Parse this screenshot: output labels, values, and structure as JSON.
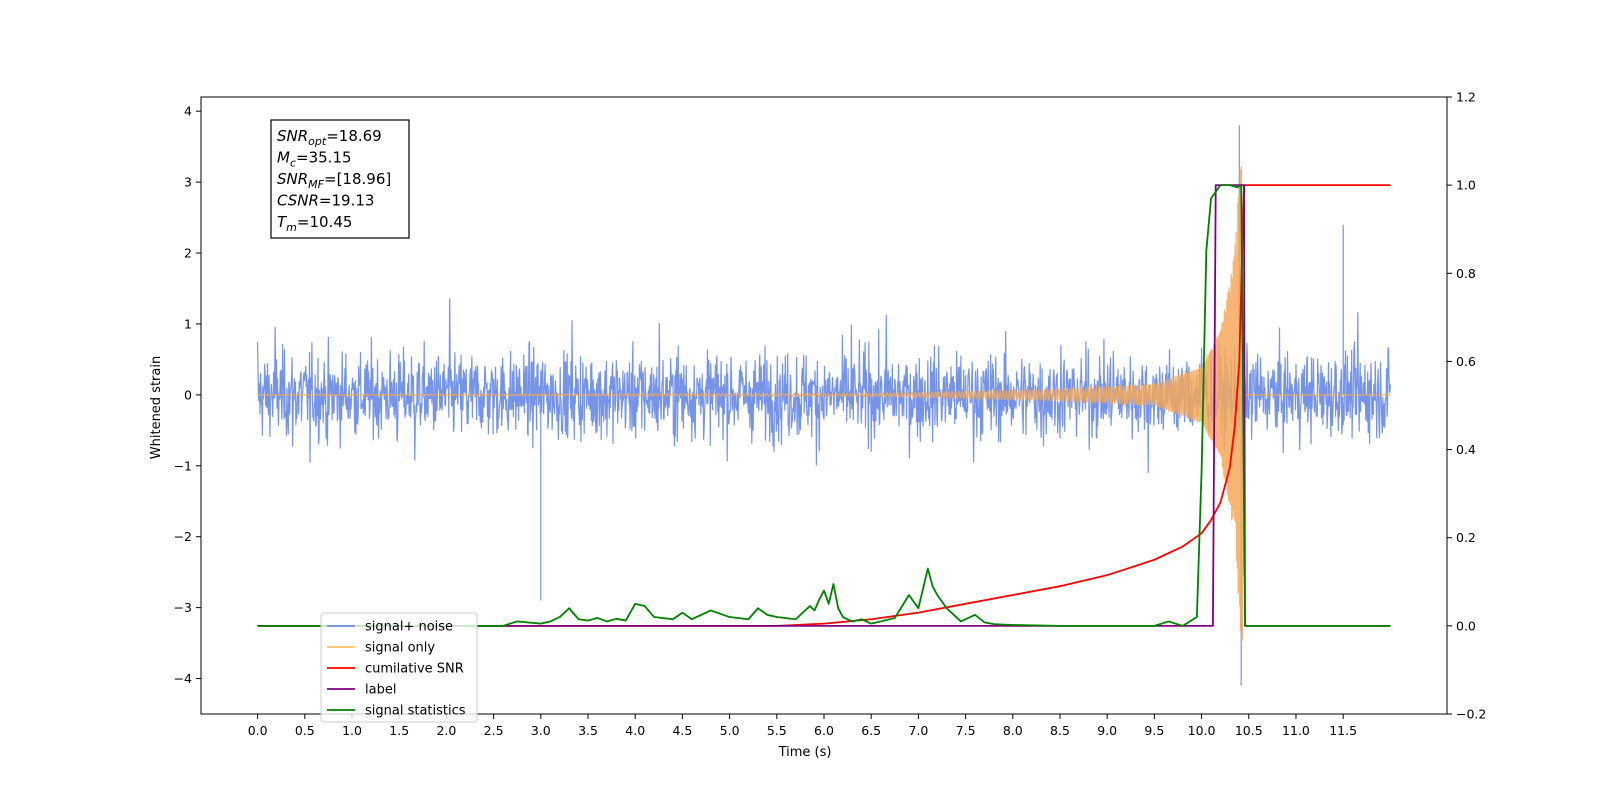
{
  "chart_data": {
    "type": "line",
    "xlabel": "Time (s)",
    "ylabel": "Whitened strain",
    "xlim": [
      -0.6,
      12.6
    ],
    "ylim": [
      -4.5,
      4.2
    ],
    "ylim_right": [
      -0.2,
      1.2
    ],
    "x_ticks": [
      "0.0",
      "0.5",
      "1.0",
      "1.5",
      "2.0",
      "2.5",
      "3.0",
      "3.5",
      "4.0",
      "4.5",
      "5.0",
      "5.5",
      "6.0",
      "6.5",
      "7.0",
      "7.5",
      "8.0",
      "8.5",
      "9.0",
      "9.5",
      "10.0",
      "10.5",
      "11.0",
      "11.5"
    ],
    "y_ticks_left": [
      "4",
      "3",
      "2",
      "1",
      "0",
      "−1",
      "−2",
      "−3",
      "−4"
    ],
    "y_ticks_right": [
      "1.2",
      "1.0",
      "0.8",
      "0.6",
      "0.4",
      "0.2",
      "0.0",
      "−0.2"
    ],
    "legend_position": "lower-left",
    "colors": {
      "signal_noise": "#6f8ee6",
      "signal_only": "#f5a85a",
      "cumulative_snr": "#ff0000",
      "label": "#800080",
      "signal_statistics": "#008000"
    },
    "legend": [
      {
        "label": "signal+ noise",
        "color": "#6f8ee6"
      },
      {
        "label": "signal only",
        "color": "#ffc266"
      },
      {
        "label": "cumilative SNR",
        "color": "#ff0000"
      },
      {
        "label": "label",
        "color": "#800080"
      },
      {
        "label": "signal statistics",
        "color": "#008000"
      }
    ],
    "annotation": [
      {
        "base": "SNR",
        "sub": "opt",
        "value": "=18.69"
      },
      {
        "base": "M",
        "sub": "c",
        "value": "=35.15"
      },
      {
        "base": "SNR",
        "sub": "MF",
        "value": "=[18.96]"
      },
      {
        "base": "CSNR",
        "sub": "",
        "value": "=19.13"
      },
      {
        "base": "T",
        "sub": "m",
        "value": "=10.45"
      }
    ],
    "signal_noise": {
      "axis": "left",
      "x_range": [
        0.0,
        12.0
      ],
      "typical_amplitude": 1.2,
      "notable_peaks": [
        {
          "x": 10.4,
          "y": 3.8
        },
        {
          "x": 10.42,
          "y": -4.1
        },
        {
          "x": 3.0,
          "y": -2.9
        },
        {
          "x": 11.5,
          "y": 2.4
        }
      ]
    },
    "signal_only": {
      "axis": "left",
      "description_points": [
        [
          0,
          0
        ],
        [
          6.5,
          0.02
        ],
        [
          8.5,
          0.08
        ],
        [
          9.5,
          0.15
        ],
        [
          10.0,
          0.4
        ],
        [
          10.2,
          0.9
        ],
        [
          10.35,
          2.0
        ],
        [
          10.42,
          3.5
        ],
        [
          10.43,
          -3.7
        ],
        [
          10.46,
          0
        ],
        [
          12.0,
          0
        ]
      ]
    },
    "cumulative_snr": {
      "axis": "right",
      "x": [
        0.0,
        5.5,
        6.0,
        6.5,
        7.0,
        7.5,
        8.0,
        8.5,
        9.0,
        9.5,
        9.8,
        10.0,
        10.1,
        10.2,
        10.3,
        10.35,
        10.4,
        10.43,
        10.45,
        10.5,
        12.0
      ],
      "y": [
        0.0,
        0.0,
        0.005,
        0.015,
        0.03,
        0.05,
        0.07,
        0.09,
        0.115,
        0.15,
        0.18,
        0.21,
        0.24,
        0.28,
        0.36,
        0.45,
        0.6,
        0.85,
        1.0,
        1.0,
        1.0
      ]
    },
    "label": {
      "axis": "right",
      "x": [
        0.0,
        10.12,
        10.15,
        10.45,
        10.46,
        12.0
      ],
      "y": [
        0.0,
        0.0,
        1.0,
        1.0,
        0.0,
        0.0
      ]
    },
    "signal_statistics": {
      "axis": "right",
      "x": [
        0.0,
        1.5,
        2.6,
        2.75,
        3.0,
        3.1,
        3.2,
        3.3,
        3.4,
        3.5,
        3.6,
        3.7,
        3.8,
        3.9,
        4.0,
        4.1,
        4.2,
        4.4,
        4.5,
        4.6,
        4.8,
        5.0,
        5.2,
        5.3,
        5.4,
        5.5,
        5.7,
        5.85,
        5.9,
        5.95,
        6.0,
        6.05,
        6.1,
        6.15,
        6.2,
        6.3,
        6.4,
        6.5,
        6.6,
        6.75,
        6.9,
        7.0,
        7.05,
        7.1,
        7.15,
        7.2,
        7.3,
        7.45,
        7.6,
        7.7,
        7.8,
        8.0,
        8.5,
        9.5,
        9.65,
        9.8,
        9.95,
        10.0,
        10.05,
        10.1,
        10.2,
        10.3,
        10.38,
        10.42,
        10.46,
        10.5,
        12.0
      ],
      "y": [
        0.0,
        0.0,
        0.0,
        0.01,
        0.005,
        0.01,
        0.02,
        0.04,
        0.015,
        0.012,
        0.018,
        0.01,
        0.016,
        0.012,
        0.05,
        0.045,
        0.02,
        0.015,
        0.03,
        0.015,
        0.035,
        0.02,
        0.015,
        0.04,
        0.025,
        0.02,
        0.015,
        0.045,
        0.035,
        0.06,
        0.08,
        0.05,
        0.095,
        0.04,
        0.02,
        0.01,
        0.015,
        0.005,
        0.01,
        0.018,
        0.07,
        0.04,
        0.085,
        0.13,
        0.09,
        0.07,
        0.04,
        0.01,
        0.025,
        0.008,
        0.004,
        0.002,
        0.0,
        0.0,
        0.01,
        0.0,
        0.02,
        0.35,
        0.85,
        0.97,
        1.0,
        1.0,
        0.995,
        1.0,
        0.0,
        0.0,
        0.0
      ]
    }
  }
}
